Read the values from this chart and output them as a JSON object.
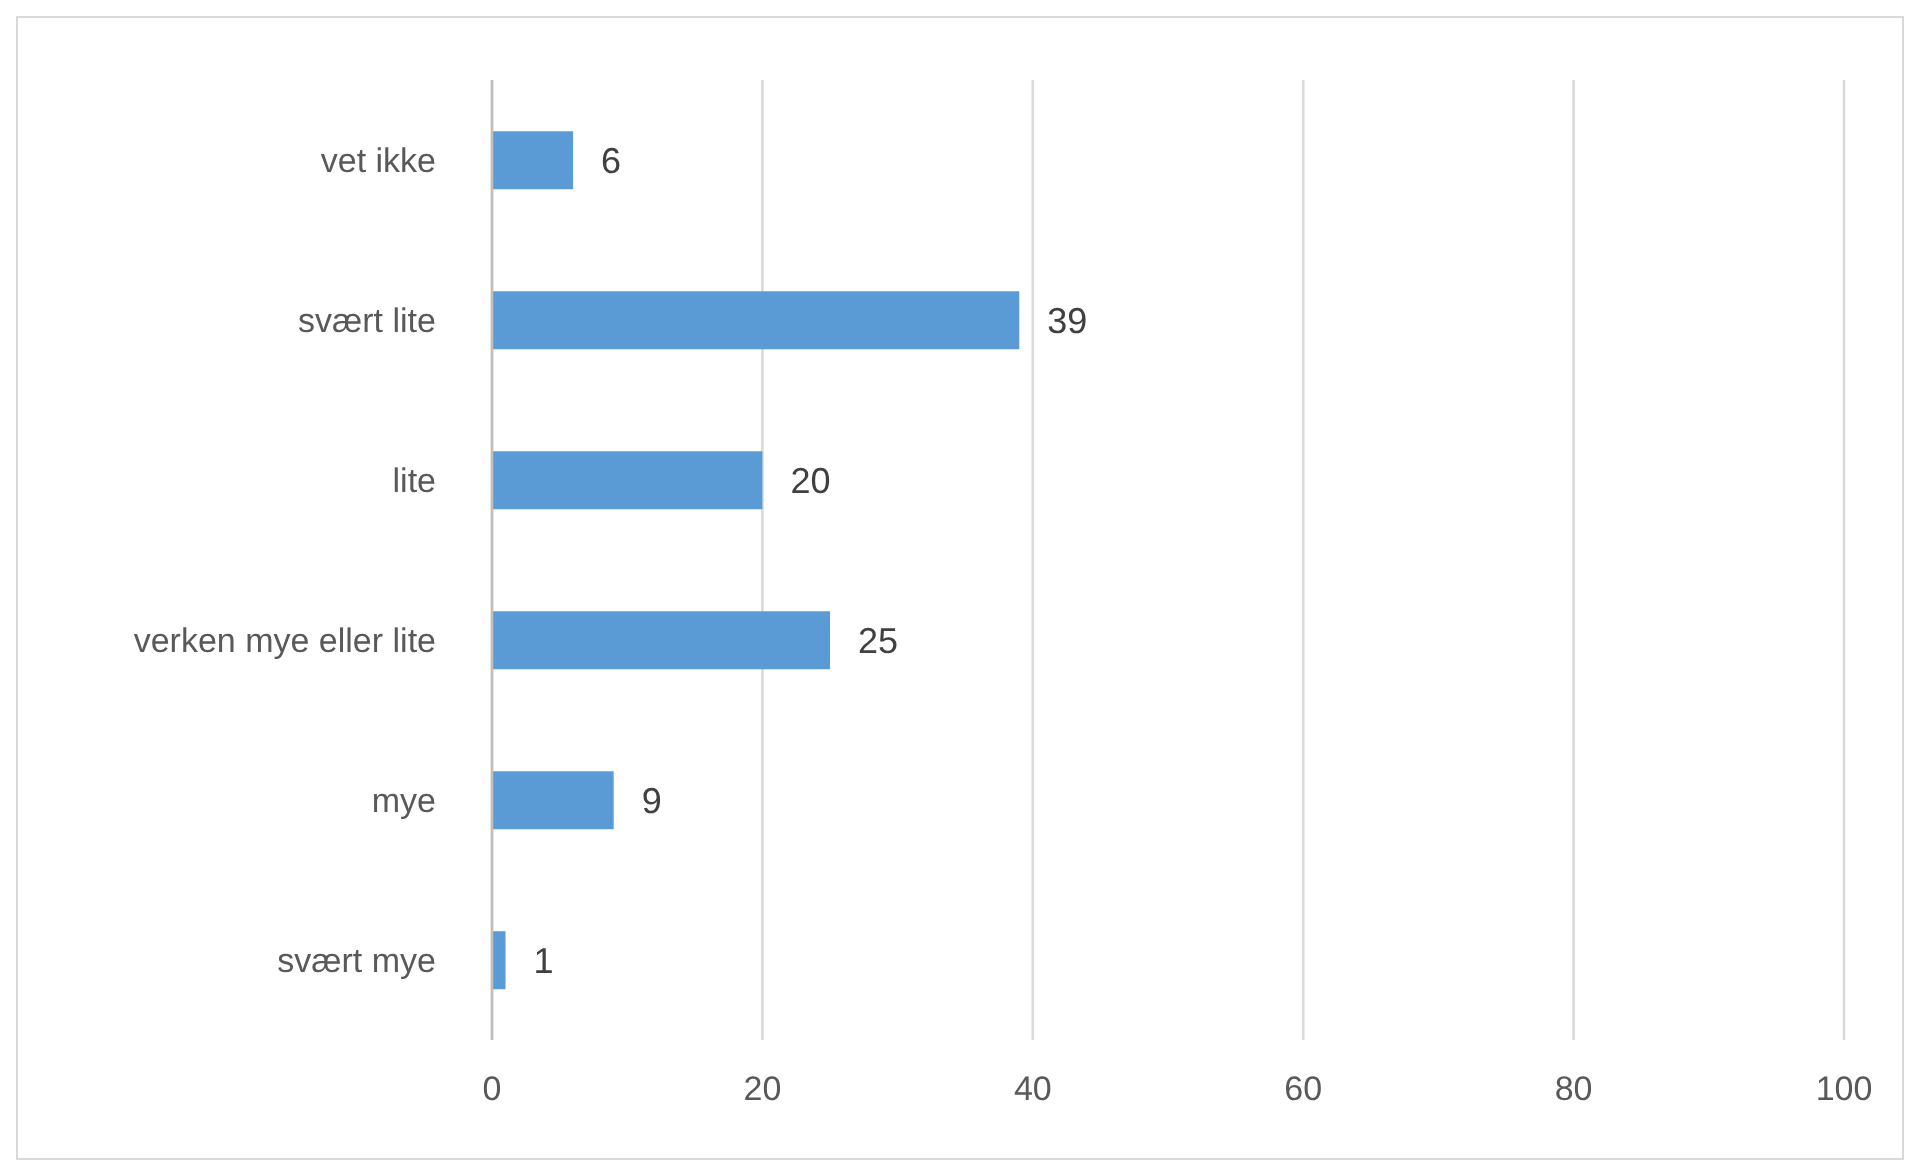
{
  "chart_data": {
    "type": "bar",
    "orientation": "horizontal",
    "categories": [
      "vet ikke",
      "svært lite",
      "lite",
      "verken mye eller lite",
      "mye",
      "svært mye"
    ],
    "values": [
      6,
      39,
      20,
      25,
      9,
      1
    ],
    "color": "#5b9bd5",
    "xlim": [
      0,
      100
    ],
    "xticks": [
      0,
      20,
      40,
      60,
      80,
      100
    ],
    "grid": "x",
    "data_labels": true,
    "legend": false
  }
}
